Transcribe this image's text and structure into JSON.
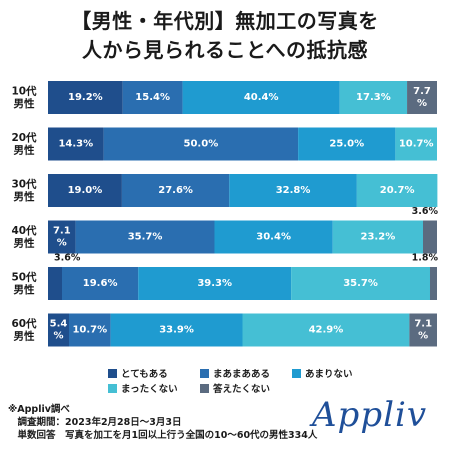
{
  "title_line1": "【男性・年代別】無加工の写真を",
  "title_line2": "人から見られることへの抵抗感",
  "chart_data": {
    "type": "bar",
    "orientation": "horizontal-stacked-100",
    "categories": [
      "10代\n男性",
      "20代\n男性",
      "30代\n男性",
      "40代\n男性",
      "50代\n男性",
      "60代\n男性"
    ],
    "series": [
      {
        "name": "とてもある",
        "color": "#1f4e8c",
        "values": [
          19.2,
          14.3,
          19.0,
          7.1,
          3.6,
          5.4
        ]
      },
      {
        "name": "まあまあある",
        "color": "#2a6eb0",
        "values": [
          15.4,
          50.0,
          27.6,
          35.7,
          19.6,
          10.7
        ]
      },
      {
        "name": "あまりない",
        "color": "#1f9bd0",
        "values": [
          40.4,
          25.0,
          32.8,
          30.4,
          39.3,
          33.9
        ]
      },
      {
        "name": "まったくない",
        "color": "#45bfd4",
        "values": [
          17.3,
          10.7,
          20.7,
          23.2,
          35.7,
          42.9
        ]
      },
      {
        "name": "答えたくない",
        "color": "#5b6b80",
        "values": [
          7.7,
          0,
          0,
          3.6,
          1.8,
          7.1
        ]
      }
    ],
    "labels": [
      [
        "19.2%",
        "15.4%",
        "40.4%",
        "17.3%",
        "7.7\n%"
      ],
      [
        "14.3%",
        "50.0%",
        "25.0%",
        "10.7%",
        ""
      ],
      [
        "19.0%",
        "27.6%",
        "32.8%",
        "20.7%",
        ""
      ],
      [
        "7.1\n%",
        "35.7%",
        "30.4%",
        "23.2%",
        "3.6%"
      ],
      [
        "3.6%",
        "19.6%",
        "39.3%",
        "35.7%",
        "1.8%"
      ],
      [
        "5.4\n%",
        "10.7%",
        "33.9%",
        "42.9%",
        "7.1\n%"
      ]
    ],
    "outside_labels": [
      {
        "row": 3,
        "series": 4,
        "text": "3.6%",
        "pos": "above"
      },
      {
        "row": 4,
        "series": 0,
        "text": "3.6%",
        "pos": "above"
      },
      {
        "row": 4,
        "series": 4,
        "text": "1.8%",
        "pos": "above"
      }
    ],
    "xlim": [
      0,
      100
    ],
    "legend_placement": "bottom",
    "grid": false
  },
  "footnote": {
    "line1": "※Appliv調べ",
    "line2": "　調査期間：2023年2月28日〜3月3日",
    "line3": "　単数回答　写真を加工を月1回以上行う全国の10〜60代の男性334人"
  },
  "logo_text": "Appliv",
  "colors": {
    "text": "#1a1a1a",
    "white": "#ffffff",
    "logo": "#1f4f99"
  }
}
